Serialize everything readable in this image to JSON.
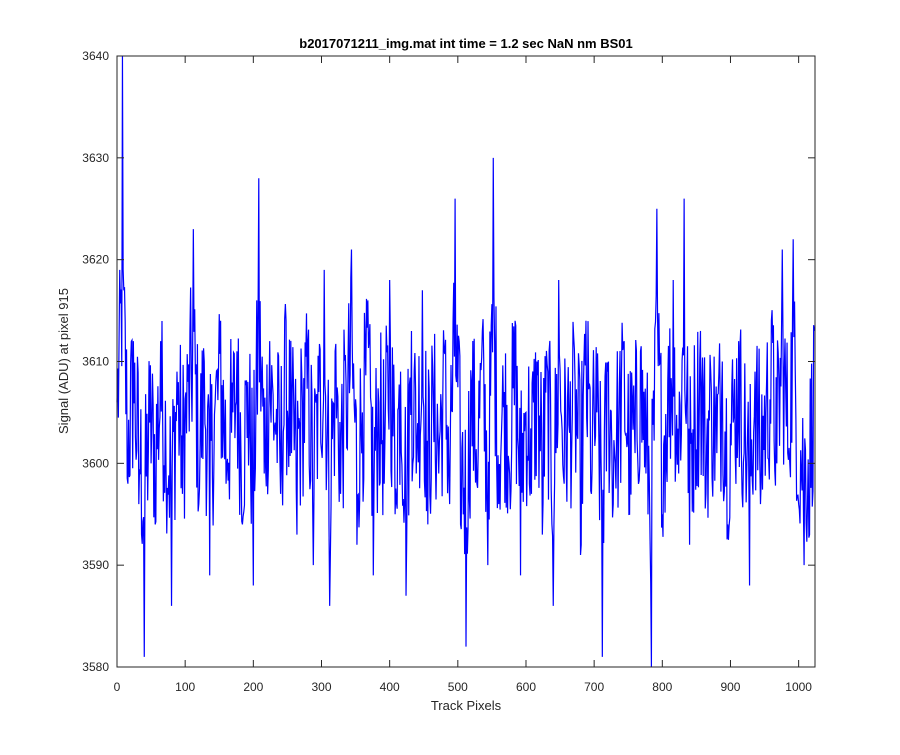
{
  "chart_data": {
    "type": "line",
    "title": "b2017071211_img.mat int time = 1.2 sec  NaN nm BS01",
    "xlabel": "Track Pixels",
    "ylabel": "Signal (ADU) at pixel 915",
    "xlim": [
      0,
      1024
    ],
    "ylim": [
      3580,
      3640
    ],
    "xticks": [
      0,
      100,
      200,
      300,
      400,
      500,
      600,
      700,
      800,
      900,
      1000
    ],
    "yticks": [
      3580,
      3590,
      3600,
      3610,
      3620,
      3630,
      3640
    ],
    "grid": false,
    "series": [
      {
        "color": "#0000ff",
        "points_every": 8,
        "x": [
          0,
          8,
          16,
          24,
          32,
          40,
          48,
          56,
          64,
          72,
          80,
          88,
          96,
          104,
          112,
          120,
          128,
          136,
          144,
          152,
          160,
          168,
          176,
          184,
          192,
          200,
          208,
          216,
          224,
          232,
          240,
          248,
          256,
          264,
          272,
          280,
          288,
          296,
          304,
          312,
          320,
          328,
          336,
          344,
          352,
          360,
          368,
          376,
          384,
          392,
          400,
          408,
          416,
          424,
          432,
          440,
          448,
          456,
          464,
          472,
          480,
          488,
          496,
          504,
          512,
          520,
          528,
          536,
          544,
          552,
          560,
          568,
          576,
          584,
          592,
          600,
          608,
          616,
          624,
          632,
          640,
          648,
          656,
          664,
          672,
          680,
          688,
          696,
          704,
          712,
          720,
          728,
          736,
          744,
          752,
          760,
          768,
          776,
          784,
          792,
          800,
          808,
          816,
          824,
          832,
          840,
          848,
          856,
          864,
          872,
          880,
          888,
          896,
          904,
          912,
          920,
          928,
          936,
          944,
          952,
          960,
          968,
          976,
          984,
          992,
          1000,
          1008,
          1016,
          1023
        ],
        "y": [
          3606,
          3640,
          3598,
          3612,
          3596,
          3581,
          3604,
          3594,
          3612,
          3599,
          3586,
          3609,
          3597,
          3608,
          3623,
          3596,
          3610,
          3589,
          3606,
          3614,
          3598,
          3603,
          3611,
          3594,
          3608,
          3588,
          3628,
          3599,
          3612,
          3604,
          3597,
          3614,
          3601,
          3593,
          3606,
          3612,
          3590,
          3607,
          3619,
          3586,
          3611,
          3597,
          3608,
          3621,
          3592,
          3605,
          3616,
          3589,
          3606,
          3598,
          3618,
          3595,
          3609,
          3587,
          3613,
          3602,
          3617,
          3594,
          3606,
          3599,
          3611,
          3596,
          3626,
          3594,
          3582,
          3608,
          3598,
          3613,
          3590,
          3630,
          3596,
          3607,
          3599,
          3614,
          3589,
          3605,
          3597,
          3610,
          3593,
          3609,
          3586,
          3618,
          3598,
          3603,
          3608,
          3591,
          3614,
          3597,
          3605,
          3581,
          3609,
          3596,
          3603,
          3612,
          3595,
          3601,
          3611,
          3599,
          3580,
          3625,
          3595,
          3608,
          3618,
          3599,
          3626,
          3592,
          3605,
          3613,
          3597,
          3607,
          3601,
          3610,
          3594,
          3604,
          3612,
          3601,
          3588,
          3609,
          3596,
          3605,
          3614,
          3600,
          3621,
          3601,
          3622,
          3596,
          3590,
          3593,
          3613
        ]
      }
    ]
  }
}
